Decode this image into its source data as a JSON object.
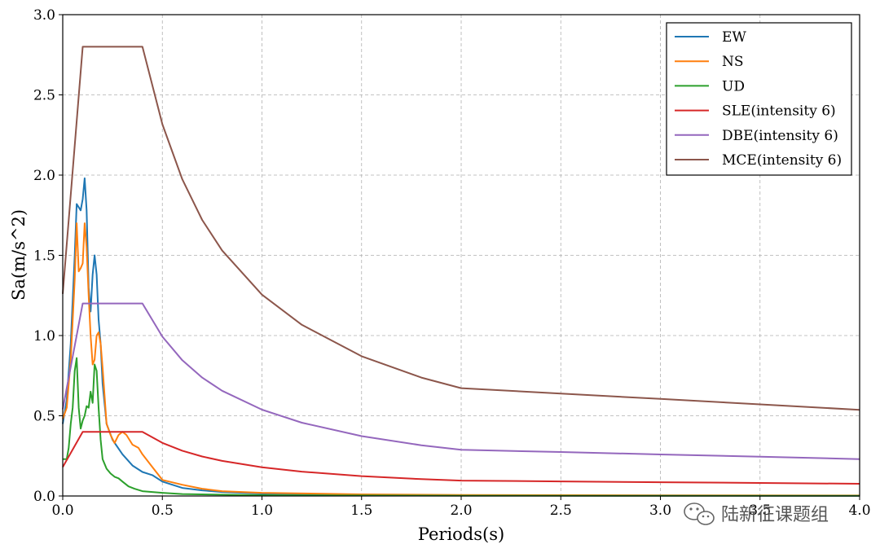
{
  "chart_data": {
    "type": "line",
    "xlabel": "Periods(s)",
    "ylabel": "Sa(m/s^2)",
    "xlim": [
      0,
      4.0
    ],
    "ylim": [
      0,
      3.0
    ],
    "x_ticks": [
      "0.0",
      "0.5",
      "1.0",
      "1.5",
      "2.0",
      "2.5",
      "3.0",
      "3.5",
      "4.0"
    ],
    "y_ticks": [
      "0.0",
      "0.5",
      "1.0",
      "1.5",
      "2.0",
      "2.5",
      "3.0"
    ],
    "grid": true,
    "legend_position": "top-right",
    "series": [
      {
        "name": "EW",
        "color": "#1f77b4",
        "x": [
          0.0,
          0.02,
          0.04,
          0.06,
          0.07,
          0.08,
          0.09,
          0.1,
          0.11,
          0.12,
          0.13,
          0.14,
          0.15,
          0.16,
          0.17,
          0.18,
          0.19,
          0.2,
          0.22,
          0.25,
          0.3,
          0.35,
          0.4,
          0.45,
          0.5,
          0.6,
          0.7,
          0.8,
          1.0,
          1.5,
          2.0,
          3.0,
          4.0
        ],
        "y": [
          0.45,
          0.6,
          0.95,
          1.5,
          1.82,
          1.8,
          1.78,
          1.85,
          1.98,
          1.78,
          1.3,
          1.15,
          1.38,
          1.5,
          1.38,
          1.1,
          0.95,
          0.7,
          0.45,
          0.35,
          0.26,
          0.19,
          0.15,
          0.13,
          0.09,
          0.05,
          0.035,
          0.025,
          0.015,
          0.008,
          0.005,
          0.003,
          0.002
        ]
      },
      {
        "name": "NS",
        "color": "#ff7f0e",
        "x": [
          0.0,
          0.02,
          0.04,
          0.06,
          0.07,
          0.08,
          0.09,
          0.1,
          0.11,
          0.12,
          0.13,
          0.14,
          0.15,
          0.16,
          0.17,
          0.18,
          0.19,
          0.2,
          0.22,
          0.24,
          0.26,
          0.28,
          0.3,
          0.32,
          0.35,
          0.38,
          0.4,
          0.45,
          0.5,
          0.6,
          0.7,
          0.8,
          1.0,
          1.5,
          2.0,
          3.0,
          4.0
        ],
        "y": [
          0.48,
          0.55,
          0.85,
          1.35,
          1.7,
          1.4,
          1.42,
          1.45,
          1.7,
          1.55,
          1.25,
          1.0,
          0.82,
          0.85,
          1.0,
          1.02,
          0.95,
          0.8,
          0.45,
          0.38,
          0.33,
          0.38,
          0.4,
          0.38,
          0.32,
          0.3,
          0.26,
          0.18,
          0.1,
          0.07,
          0.045,
          0.03,
          0.02,
          0.01,
          0.006,
          0.004,
          0.003
        ]
      },
      {
        "name": "UD",
        "color": "#2ca02c",
        "x": [
          0.0,
          0.02,
          0.03,
          0.04,
          0.05,
          0.06,
          0.07,
          0.08,
          0.09,
          0.1,
          0.11,
          0.12,
          0.13,
          0.14,
          0.15,
          0.16,
          0.17,
          0.18,
          0.19,
          0.2,
          0.22,
          0.24,
          0.26,
          0.28,
          0.3,
          0.33,
          0.36,
          0.4,
          0.45,
          0.5,
          0.6,
          0.8,
          1.0,
          1.5,
          2.0,
          3.0,
          4.0
        ],
        "y": [
          0.23,
          0.23,
          0.3,
          0.45,
          0.55,
          0.78,
          0.86,
          0.55,
          0.42,
          0.47,
          0.5,
          0.56,
          0.55,
          0.65,
          0.58,
          0.82,
          0.78,
          0.55,
          0.35,
          0.23,
          0.17,
          0.14,
          0.12,
          0.11,
          0.09,
          0.06,
          0.045,
          0.03,
          0.025,
          0.02,
          0.012,
          0.008,
          0.005,
          0.003,
          0.002,
          0.001,
          0.001
        ]
      },
      {
        "name": "SLE(intensity 6)",
        "color": "#d62728",
        "x": [
          0.0,
          0.1,
          0.4,
          0.5,
          0.6,
          0.7,
          0.8,
          1.0,
          1.2,
          1.5,
          1.8,
          2.0,
          2.5,
          3.0,
          3.5,
          4.0
        ],
        "y": [
          0.18,
          0.4,
          0.4,
          0.331,
          0.282,
          0.246,
          0.219,
          0.179,
          0.152,
          0.124,
          0.105,
          0.096,
          0.091,
          0.086,
          0.081,
          0.076
        ]
      },
      {
        "name": "DBE(intensity 6)",
        "color": "#9467bd",
        "x": [
          0.0,
          0.1,
          0.4,
          0.5,
          0.6,
          0.7,
          0.8,
          1.0,
          1.2,
          1.5,
          1.8,
          2.0,
          2.5,
          3.0,
          3.5,
          4.0
        ],
        "y": [
          0.54,
          1.2,
          1.2,
          0.993,
          0.846,
          0.738,
          0.656,
          0.538,
          0.457,
          0.373,
          0.316,
          0.288,
          0.274,
          0.259,
          0.245,
          0.23
        ]
      },
      {
        "name": "MCE(intensity 6)",
        "color": "#8c564b",
        "x": [
          0.0,
          0.1,
          0.4,
          0.5,
          0.6,
          0.7,
          0.8,
          1.0,
          1.2,
          1.5,
          1.8,
          2.0,
          2.5,
          3.0,
          3.5,
          4.0
        ],
        "y": [
          1.26,
          2.8,
          2.8,
          2.317,
          1.974,
          1.721,
          1.53,
          1.255,
          1.067,
          0.871,
          0.738,
          0.672,
          0.638,
          0.605,
          0.571,
          0.537
        ]
      }
    ]
  },
  "watermark": {
    "text": "陆新征课题组",
    "icon": "wechat-icon"
  }
}
